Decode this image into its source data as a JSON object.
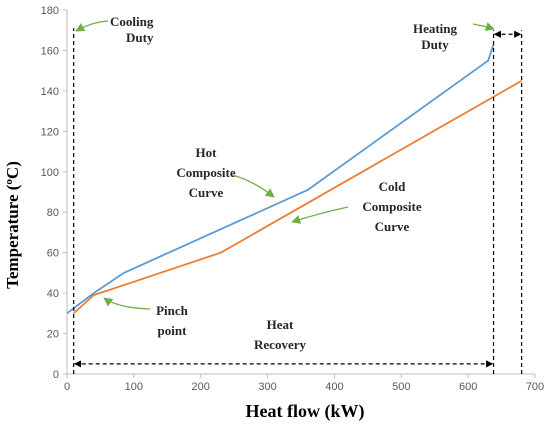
{
  "chart_data": {
    "type": "line",
    "title": "",
    "xlabel": "Heat flow (kW)",
    "ylabel_parts": [
      "Temperature (",
      "o",
      "C)"
    ],
    "xlim": [
      0,
      700
    ],
    "ylim": [
      0,
      180
    ],
    "xticks": [
      0,
      100,
      200,
      300,
      400,
      500,
      600,
      700
    ],
    "yticks": [
      0,
      20,
      40,
      60,
      80,
      100,
      120,
      140,
      160,
      180
    ],
    "grid": false,
    "legend": "none",
    "colors": {
      "hot": "#5B9BD5",
      "cold": "#ED7D31",
      "arrow_green": "#70AD47",
      "axis": "#bfbfbf",
      "annotation": "#262626",
      "guide": "#000000"
    },
    "series": [
      {
        "key": "hot",
        "x": [
          0,
          40,
          85,
          360,
          630,
          638
        ],
        "y": [
          30,
          40,
          50,
          91,
          155,
          163
        ]
      },
      {
        "key": "cold",
        "x": [
          10,
          40,
          230,
          680
        ],
        "y": [
          30,
          39,
          60,
          145
        ]
      }
    ],
    "annotations": [
      {
        "key": "cooling",
        "lines": [
          "Cooling",
          "Duty"
        ]
      },
      {
        "key": "heating",
        "lines": [
          "Heating",
          "Duty"
        ]
      },
      {
        "key": "hot_label",
        "lines": [
          "Hot",
          "Composite",
          "Curve"
        ]
      },
      {
        "key": "cold_label",
        "lines": [
          "Cold",
          "Composite",
          "Curve"
        ]
      },
      {
        "key": "pinch",
        "lines": [
          "Pinch",
          "point"
        ]
      },
      {
        "key": "recovery",
        "lines": [
          "Heat",
          "Recovery"
        ]
      }
    ],
    "guides": {
      "cooling_x": 10,
      "recovery_x_end": 638,
      "heating_x_end": 680,
      "recovery_y": 5,
      "heating_arrow_y": 168
    }
  }
}
